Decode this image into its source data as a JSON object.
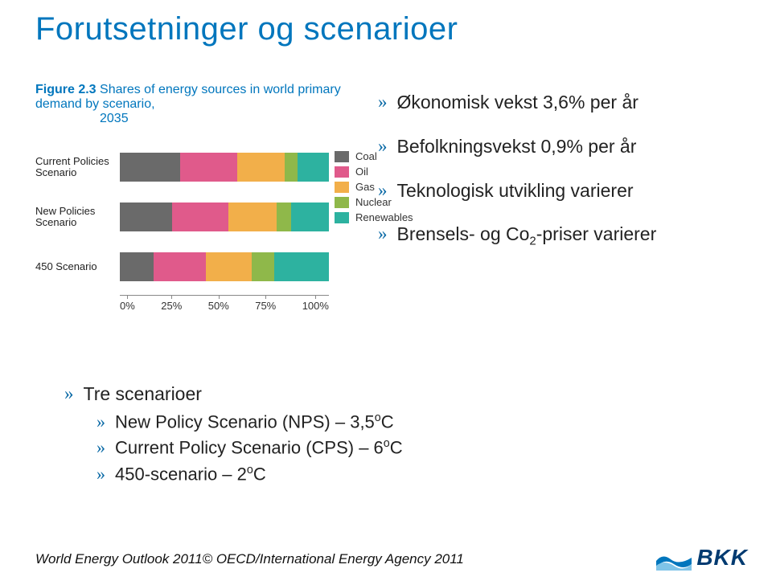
{
  "title": "Forutsetninger og scenarioer",
  "title_color": "#0076bd",
  "figure": {
    "label": "Figure 2.3",
    "caption_a": "Shares of energy sources in world primary demand by scenario,",
    "caption_b": "2035",
    "caption_color": "#0076bd",
    "row_labels": [
      "Current Policies Scenario",
      "New Policies Scenario",
      "450 Scenario"
    ],
    "series": [
      "Coal",
      "Oil",
      "Gas",
      "Nuclear",
      "Renewables"
    ],
    "colors": {
      "Coal": "#6a6a6a",
      "Oil": "#e05a8b",
      "Gas": "#f2af4a",
      "Nuclear": "#8fb84a",
      "Renewables": "#2db2a0"
    },
    "values": [
      [
        29,
        27,
        23,
        6,
        15
      ],
      [
        25,
        27,
        23,
        7,
        18
      ],
      [
        16,
        25,
        22,
        11,
        26
      ]
    ],
    "x_ticks": [
      "0%",
      "25%",
      "50%",
      "75%",
      "100%"
    ]
  },
  "right_bullets": [
    "Økonomisk vekst 3,6% per år",
    "Befolkningsvekst 0,9% per år",
    "Teknologisk utvikling varierer",
    "Brensels- og Co₂-priser varierer"
  ],
  "lower": {
    "main": "Tre scenarioer",
    "subs": [
      "New Policy Scenario (NPS) – 3,5°C",
      "Current Policy Scenario (CPS) – 6°C",
      "450-scenario – 2°C"
    ]
  },
  "footer": "World Energy Outlook 2011© OECD/International Energy Agency 2011",
  "logo_text": "BKK",
  "logo_colors": {
    "text": "#003a70",
    "wave_top": "#0076bd",
    "wave_bottom": "#7fc4e8"
  }
}
